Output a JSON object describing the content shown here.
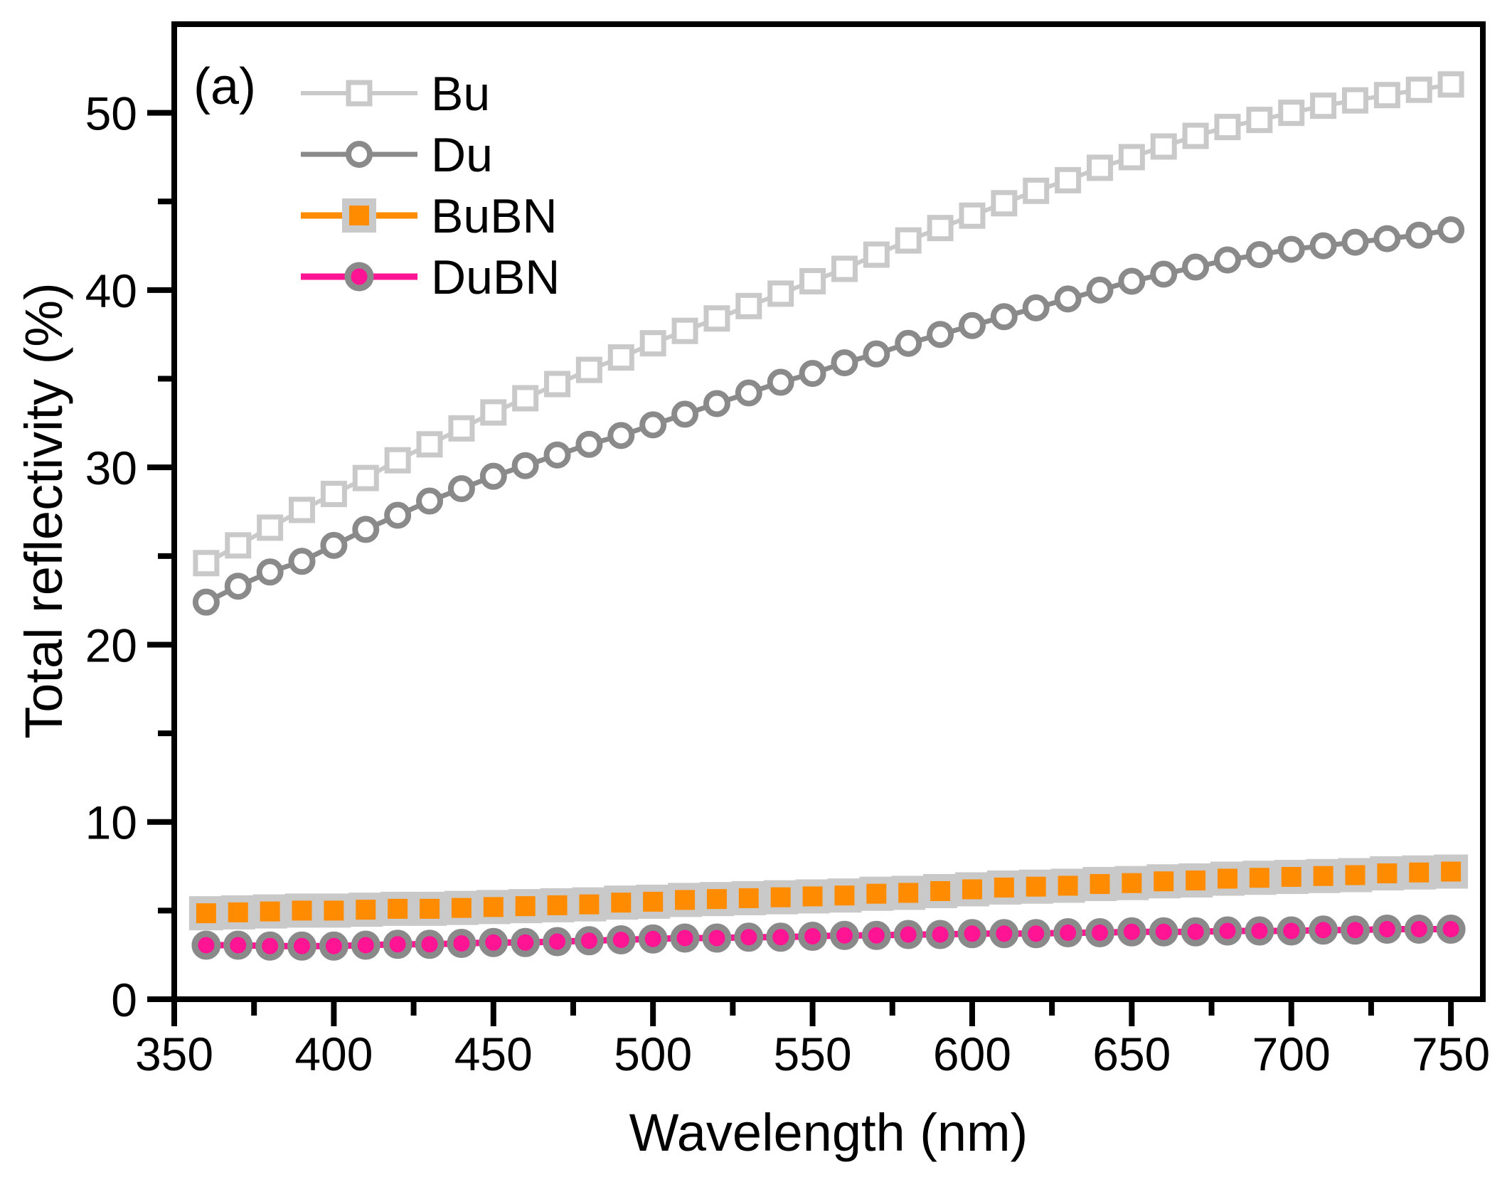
{
  "figure_label": "(a)",
  "colors": {
    "background": "#ffffff",
    "frame": "#000000",
    "tick_label": "#000000",
    "bu_gray": "#c9c9c9",
    "du_gray": "#8a8a8a",
    "bubn_orange": "#ff8c00",
    "dubn_magenta": "#ff1493"
  },
  "chart_data": {
    "type": "line",
    "title": "",
    "xlabel": "Wavelength (nm)",
    "ylabel": "Total reflectivity (%)",
    "xlim": [
      350,
      760
    ],
    "ylim": [
      0,
      55
    ],
    "grid": false,
    "legend_position": "upper-left-inside",
    "x_ticks_major": [
      350,
      400,
      450,
      500,
      550,
      600,
      650,
      700,
      750
    ],
    "x_ticks_minor": [
      375,
      425,
      475,
      525,
      575,
      625,
      675,
      725
    ],
    "y_ticks_major": [
      0,
      10,
      20,
      30,
      40,
      50
    ],
    "y_ticks_minor": [
      5,
      15,
      25,
      35,
      45
    ],
    "x": [
      360,
      370,
      380,
      390,
      400,
      410,
      420,
      430,
      440,
      450,
      460,
      470,
      480,
      490,
      500,
      510,
      520,
      530,
      540,
      550,
      560,
      570,
      580,
      590,
      600,
      610,
      620,
      630,
      640,
      650,
      660,
      670,
      680,
      690,
      700,
      710,
      720,
      730,
      740,
      750
    ],
    "series": [
      {
        "name": "Bu",
        "marker": "open-square",
        "line_color": "#c9c9c9",
        "marker_edge": "#c9c9c9",
        "marker_fill": "#ffffff",
        "values": [
          24.6,
          25.6,
          26.6,
          27.6,
          28.5,
          29.4,
          30.4,
          31.3,
          32.2,
          33.1,
          33.9,
          34.7,
          35.5,
          36.2,
          37.0,
          37.7,
          38.4,
          39.1,
          39.8,
          40.5,
          41.2,
          42.0,
          42.8,
          43.5,
          44.2,
          44.9,
          45.6,
          46.2,
          46.9,
          47.5,
          48.1,
          48.7,
          49.2,
          49.6,
          50.0,
          50.4,
          50.7,
          51.0,
          51.3,
          51.6
        ]
      },
      {
        "name": "Du",
        "marker": "open-circle",
        "line_color": "#8a8a8a",
        "marker_edge": "#8a8a8a",
        "marker_fill": "#ffffff",
        "values": [
          22.4,
          23.3,
          24.1,
          24.7,
          25.6,
          26.5,
          27.3,
          28.1,
          28.8,
          29.5,
          30.1,
          30.7,
          31.3,
          31.8,
          32.4,
          33.0,
          33.6,
          34.2,
          34.8,
          35.3,
          35.9,
          36.4,
          37.0,
          37.5,
          38.0,
          38.5,
          39.0,
          39.5,
          40.0,
          40.5,
          40.9,
          41.3,
          41.7,
          42.0,
          42.3,
          42.5,
          42.7,
          42.9,
          43.1,
          43.4
        ]
      },
      {
        "name": "BuBN",
        "marker": "filled-square",
        "line_color": "#ff8c00",
        "marker_edge": "#c9c9c9",
        "marker_fill": "#ff8c00",
        "values": [
          4.85,
          4.9,
          4.95,
          5.0,
          5.0,
          5.05,
          5.1,
          5.1,
          5.15,
          5.2,
          5.25,
          5.3,
          5.35,
          5.45,
          5.5,
          5.6,
          5.65,
          5.7,
          5.75,
          5.8,
          5.85,
          5.95,
          6.0,
          6.1,
          6.2,
          6.3,
          6.35,
          6.4,
          6.5,
          6.55,
          6.65,
          6.7,
          6.8,
          6.85,
          6.9,
          6.95,
          7.0,
          7.1,
          7.15,
          7.2
        ]
      },
      {
        "name": "DuBN",
        "marker": "filled-circle",
        "line_color": "#ff1493",
        "marker_edge": "#8a8a8a",
        "marker_fill": "#ff1493",
        "values": [
          3.05,
          3.05,
          3.0,
          3.0,
          3.0,
          3.05,
          3.1,
          3.1,
          3.15,
          3.2,
          3.2,
          3.25,
          3.3,
          3.35,
          3.4,
          3.45,
          3.45,
          3.5,
          3.5,
          3.55,
          3.6,
          3.6,
          3.65,
          3.65,
          3.7,
          3.7,
          3.7,
          3.75,
          3.75,
          3.8,
          3.8,
          3.8,
          3.85,
          3.85,
          3.85,
          3.9,
          3.9,
          3.95,
          3.95,
          3.95
        ]
      }
    ]
  }
}
